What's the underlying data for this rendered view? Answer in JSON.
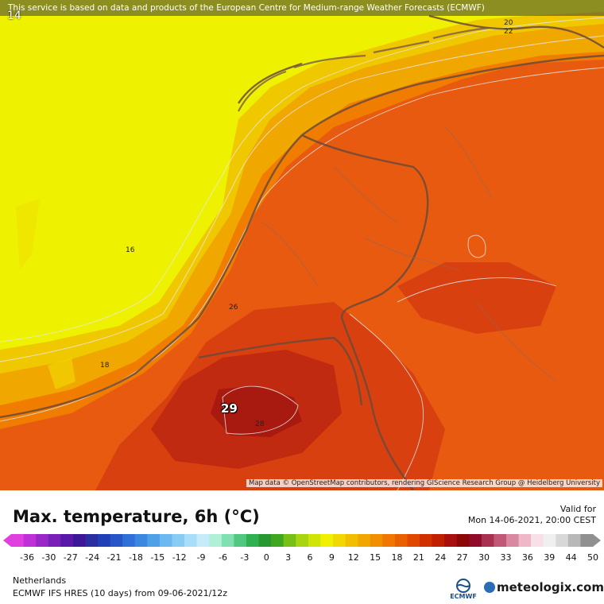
{
  "banner": {
    "text": "This service is based on data and products of the European Centre for Medium-range Weather Forecasts (ECMWF)"
  },
  "map": {
    "attribution": "Map data © OpenStreetMap contributors, rendering GIScience Research Group @ Heidelberg University",
    "corner_value": "14",
    "max_label": "29",
    "contour_labels": [
      {
        "text": "16"
      },
      {
        "text": "18"
      },
      {
        "text": "20"
      },
      {
        "text": "22"
      },
      {
        "text": "26"
      },
      {
        "text": "28"
      }
    ]
  },
  "header": {
    "title": "Max. temperature, 6h (°C)",
    "valid_label": "Valid for",
    "valid_date": "Mon 14-06-2021, 20:00 CEST"
  },
  "scale": {
    "ticks": [
      "-36",
      "-30",
      "-27",
      "-24",
      "-21",
      "-18",
      "-15",
      "-12",
      "-9",
      "-6",
      "-3",
      "0",
      "3",
      "6",
      "9",
      "12",
      "15",
      "18",
      "21",
      "24",
      "27",
      "30",
      "33",
      "36",
      "39",
      "44",
      "50"
    ],
    "colors": [
      "#e040e0",
      "#c030d8",
      "#9a28c8",
      "#7820b8",
      "#5a18a8",
      "#3c1898",
      "#2a2ea0",
      "#2040b8",
      "#2856c8",
      "#3070d8",
      "#3c88e0",
      "#50a0e8",
      "#6cb8f0",
      "#88ccf4",
      "#a8def8",
      "#c6ecfa",
      "#b0f0d8",
      "#80e0b0",
      "#50c880",
      "#30b050",
      "#289830",
      "#40a820",
      "#78c018",
      "#a8d410",
      "#d0e408",
      "#f0f000",
      "#f0d800",
      "#f0c000",
      "#f0a800",
      "#f09000",
      "#f07800",
      "#e86000",
      "#e04800",
      "#d03000",
      "#c02000",
      "#a81010",
      "#8c0808",
      "#900a2a",
      "#a83050",
      "#c05878",
      "#d888a0",
      "#eeb8c8",
      "#f8e0e8",
      "#f0f0f0",
      "#d8d8d8",
      "#b8b8b8",
      "#909090"
    ]
  },
  "footer": {
    "region": "Netherlands",
    "model": "ECMWF IFS HRES (10 days) from  09-06-2021/12z",
    "ecmwf": "ECMWF",
    "brand": "meteologix.com"
  },
  "legend_temps": {
    "sea_cool": "#f0f000",
    "warm": "#e85a10",
    "hot": "#b82810"
  }
}
